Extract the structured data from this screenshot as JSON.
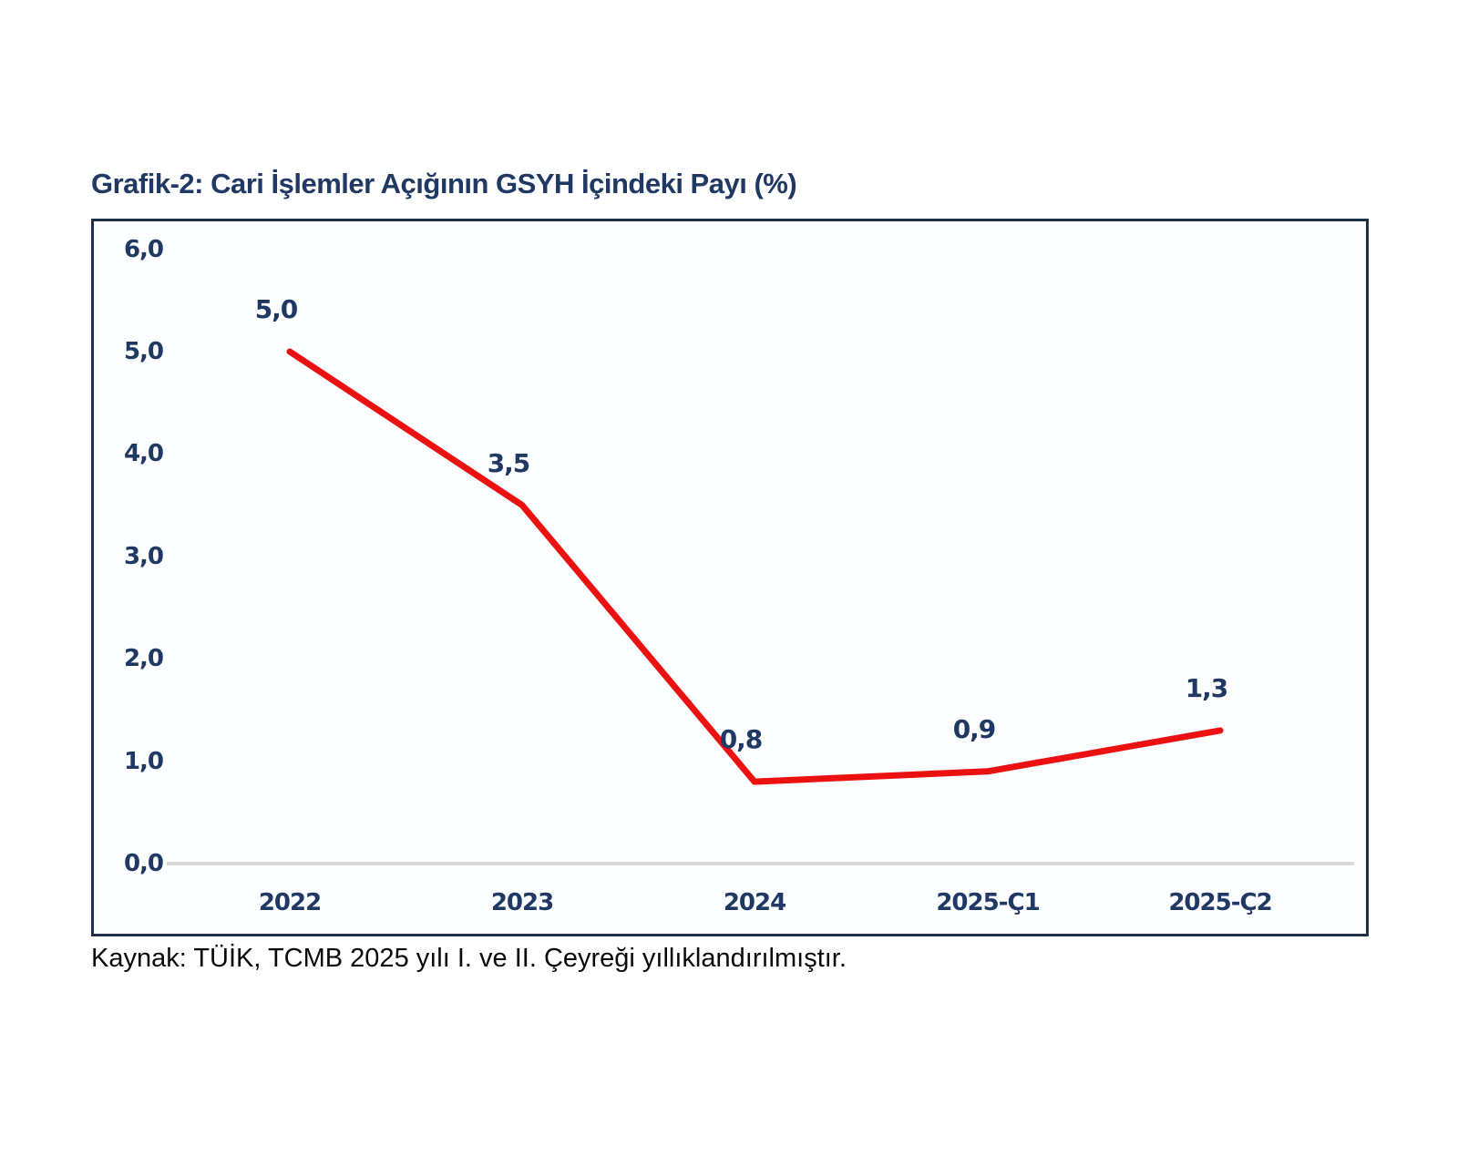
{
  "page": {
    "source_note": "Kaynak: TÜİK, TCMB 2025 yılı I. ve II. Çeyreği yıllıklandırılmıştır."
  },
  "chart_data": {
    "type": "line",
    "title": "Grafik-2: Cari İşlemler Açığının GSYH İçindeki Payı (%)",
    "categories": [
      "2022",
      "2023",
      "2024",
      "2025-Ç1",
      "2025-Ç2"
    ],
    "values": [
      5.0,
      3.5,
      0.8,
      0.9,
      1.3
    ],
    "data_labels": [
      "5,0",
      "3,5",
      "0,8",
      "0,9",
      "1,3"
    ],
    "y_ticks": [
      {
        "value": 6,
        "label": "6,0"
      },
      {
        "value": 5,
        "label": "5,0"
      },
      {
        "value": 4,
        "label": "4,0"
      },
      {
        "value": 3,
        "label": "3,0"
      },
      {
        "value": 2,
        "label": "2,0"
      },
      {
        "value": 1,
        "label": "1,0"
      },
      {
        "value": 0,
        "label": "0,0"
      }
    ],
    "ylim": [
      0,
      6
    ],
    "xlabel": "",
    "ylabel": "",
    "grid": false,
    "legend": "none",
    "line_color": "#EC1111",
    "label_color": "#1F3864",
    "axis_line_color": "#D9D9D9",
    "source": "Kaynak: TÜİK, TCMB 2025 yılı I. ve II. Çeyreği yıllıklandırılmıştır."
  }
}
